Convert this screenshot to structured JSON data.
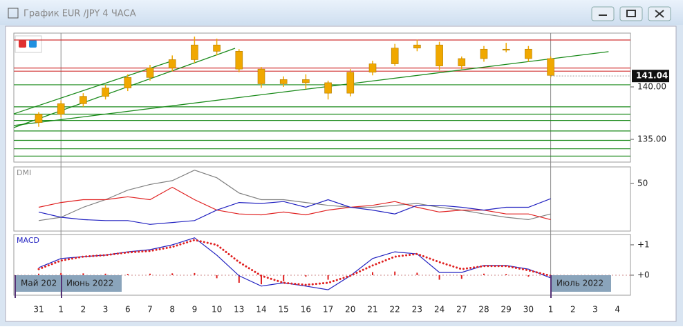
{
  "chart_data": [
    {
      "type": "candlestick",
      "title": "График EUR /JPY  4 ЧАСА",
      "categories": [
        "31",
        "1",
        "2",
        "3",
        "6",
        "7",
        "8",
        "9",
        "10",
        "13",
        "14",
        "15",
        "16",
        "17",
        "20",
        "21",
        "22",
        "23",
        "24",
        "27",
        "28",
        "29",
        "30",
        "1",
        "2",
        "3",
        "4"
      ],
      "open": [
        136.6,
        137.4,
        138.4,
        139.1,
        139.9,
        140.9,
        141.8,
        142.6,
        144.0,
        143.4,
        141.7,
        140.3,
        140.7,
        140.4,
        139.4,
        141.4,
        142.2,
        143.7,
        144.0,
        142.0,
        142.7,
        143.6,
        143.6,
        142.7,
        null,
        null,
        null
      ],
      "high": [
        137.6,
        138.7,
        139.4,
        140.2,
        141.2,
        142.1,
        143.0,
        144.8,
        144.6,
        143.6,
        141.9,
        141.0,
        141.2,
        140.6,
        141.7,
        142.5,
        144.1,
        144.5,
        144.3,
        142.9,
        143.9,
        144.2,
        143.9,
        142.9,
        null,
        null,
        null
      ],
      "low": [
        136.2,
        137.1,
        138.1,
        138.8,
        139.6,
        140.6,
        141.5,
        142.3,
        143.0,
        141.4,
        139.9,
        140.0,
        139.8,
        138.8,
        139.1,
        141.1,
        142.0,
        143.4,
        141.6,
        141.7,
        142.4,
        143.3,
        142.4,
        140.9,
        null,
        null,
        null
      ],
      "close": [
        137.4,
        138.4,
        139.1,
        139.9,
        140.9,
        141.8,
        142.6,
        144.0,
        143.4,
        141.7,
        140.3,
        140.7,
        140.4,
        139.4,
        141.4,
        142.2,
        143.7,
        144.0,
        142.0,
        142.7,
        143.6,
        143.6,
        142.7,
        141.1,
        null,
        null,
        null
      ],
      "color": "#f0a800",
      "ylim": [
        132.83,
        145.13
      ],
      "yticks": [
        {
          "value": 140,
          "label": "140.00"
        },
        {
          "value": 135,
          "label": "135.00"
        }
      ],
      "last_price": {
        "value": 141.04,
        "label": "141.04"
      },
      "hlines": [
        {
          "value": 144.47,
          "color": "#d03030"
        },
        {
          "value": 141.8,
          "color": "#d03030"
        },
        {
          "value": 141.5,
          "color": "#d03030"
        },
        {
          "value": 140.2,
          "color": "#1a8a1a"
        },
        {
          "value": 138.1,
          "color": "#1a8a1a"
        },
        {
          "value": 137.4,
          "color": "#1a8a1a"
        },
        {
          "value": 136.8,
          "color": "#1a8a1a"
        },
        {
          "value": 135.8,
          "color": "#1a8a1a"
        },
        {
          "value": 134.9,
          "color": "#1a8a1a"
        },
        {
          "value": 134.1,
          "color": "#1a8a1a"
        },
        {
          "value": 133.4,
          "color": "#1a8a1a"
        }
      ],
      "trendlines": [
        {
          "x": [
            -1.12,
            8.82
          ],
          "y": [
            136.12,
            143.68
          ],
          "color": "#1a8a1a"
        },
        {
          "x": [
            -1.12,
            6.02
          ],
          "y": [
            137.43,
            142.5
          ],
          "color": "#1a8a1a"
        },
        {
          "x": [
            -1.12,
            25.6
          ],
          "y": [
            136.32,
            143.36
          ],
          "color": "#1a8a1a"
        }
      ],
      "month_labels": [
        "Май 202",
        "Июнь 2022",
        "Июль 2022"
      ]
    },
    {
      "type": "line",
      "title": "DMI",
      "series": [
        {
          "color": "#808080",
          "values": [
            11,
            14.5,
            25,
            33,
            43,
            49,
            53,
            64,
            56,
            40,
            33,
            33,
            30,
            27,
            25,
            25,
            27,
            29,
            25,
            22,
            18,
            14.5,
            12,
            18,
            null,
            null,
            null
          ]
        },
        {
          "color": "#e02020",
          "values": [
            25,
            30,
            33,
            33,
            36,
            33,
            46,
            33,
            22,
            18,
            17,
            20,
            17,
            22,
            25,
            27,
            31,
            25,
            20,
            22,
            22,
            18,
            18,
            12,
            null,
            null,
            null
          ]
        },
        {
          "color": "#2020c0",
          "values": [
            20,
            14.5,
            12,
            11,
            11,
            7,
            9,
            11,
            22,
            30,
            29,
            31,
            25,
            33,
            25,
            22,
            18,
            27,
            27,
            25,
            22,
            25,
            25,
            34,
            null,
            null,
            null
          ]
        }
      ],
      "ylim": [
        0,
        67.4
      ],
      "yticks": [
        50
      ]
    },
    {
      "type": "macd",
      "title": "MACD",
      "series": [
        {
          "color": "#2020c0",
          "values": [
            0.25,
            0.55,
            0.61,
            0.66,
            0.77,
            0.84,
            1,
            1.23,
            0.66,
            -0.02,
            -0.36,
            -0.25,
            -0.36,
            -0.48,
            -0.02,
            0.55,
            0.77,
            0.7,
            0.09,
            0.09,
            0.32,
            0.32,
            0.2,
            -0.09,
            null,
            null,
            null
          ]
        },
        {
          "color": "#e02020",
          "values": [
            0.2,
            0.48,
            0.61,
            0.66,
            0.75,
            0.8,
            0.93,
            1.16,
            1,
            0.43,
            -0.02,
            -0.25,
            -0.32,
            -0.25,
            -0.02,
            0.32,
            0.61,
            0.7,
            0.43,
            0.2,
            0.3,
            0.3,
            0.16,
            -0.02,
            null,
            null,
            null
          ]
        }
      ],
      "histogram": {
        "color": "#e02020",
        "values": [
          0.05,
          0.07,
          0.06,
          0.05,
          0.04,
          0.05,
          0.06,
          0.07,
          -0.1,
          -0.25,
          -0.3,
          -0.2,
          -0.05,
          -0.15,
          -0.02,
          0.1,
          0.12,
          0.08,
          -0.15,
          -0.12,
          0.05,
          0.04,
          -0.05,
          -0.08,
          null,
          null,
          null
        ]
      },
      "ylim": [
        -0.66,
        1.34
      ],
      "yticks": [
        {
          "value": 1,
          "label": "+1"
        },
        {
          "value": 0,
          "label": "+0"
        }
      ]
    }
  ]
}
